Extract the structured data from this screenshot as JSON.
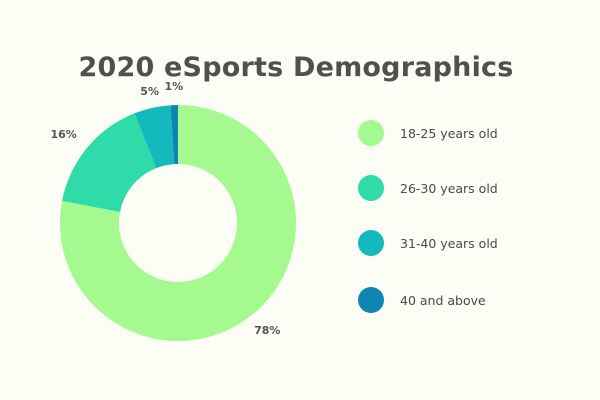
{
  "chart_data": {
    "type": "pie",
    "title": "2020 eSports Demographics",
    "categories": [
      "18-25 years old",
      "26-30 years old",
      "31-40 years old",
      "40 and above"
    ],
    "values": [
      78,
      16,
      5,
      1
    ],
    "labels": [
      "78%",
      "16%",
      "5%",
      "1%"
    ],
    "colors": [
      "#a4fa8e",
      "#2fdba8",
      "#14b9bd",
      "#0d85b0"
    ],
    "donut": true,
    "legend": "right"
  }
}
